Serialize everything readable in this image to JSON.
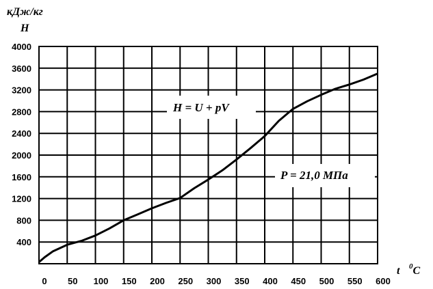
{
  "chart_data": {
    "type": "line",
    "title": "",
    "ylabel_unit": "кДж/кг",
    "ylabel": "H",
    "xlabel": "t",
    "xlabel_unit": "0C",
    "xlim": [
      0,
      600
    ],
    "ylim": [
      0,
      4000
    ],
    "x_ticks": [
      0,
      50,
      100,
      150,
      200,
      250,
      300,
      350,
      400,
      450,
      500,
      550,
      600
    ],
    "y_ticks": [
      400,
      800,
      1200,
      1600,
      2000,
      2400,
      2800,
      3200,
      3600,
      4000
    ],
    "grid": true,
    "annotations": [
      {
        "text": "H = U + pV"
      },
      {
        "text": "P = 21,0 МПа"
      }
    ],
    "series": [
      {
        "x": [
          0,
          10,
          25,
          50,
          75,
          100,
          125,
          150,
          175,
          200,
          225,
          250,
          275,
          300,
          325,
          350,
          375,
          400,
          425,
          450,
          475,
          500,
          525,
          550,
          575,
          600
        ],
        "values": [
          30,
          120,
          230,
          350,
          420,
          520,
          650,
          800,
          910,
          1020,
          1120,
          1210,
          1390,
          1550,
          1720,
          1920,
          2130,
          2350,
          2630,
          2850,
          2990,
          3110,
          3220,
          3300,
          3390,
          3500
        ]
      }
    ]
  }
}
